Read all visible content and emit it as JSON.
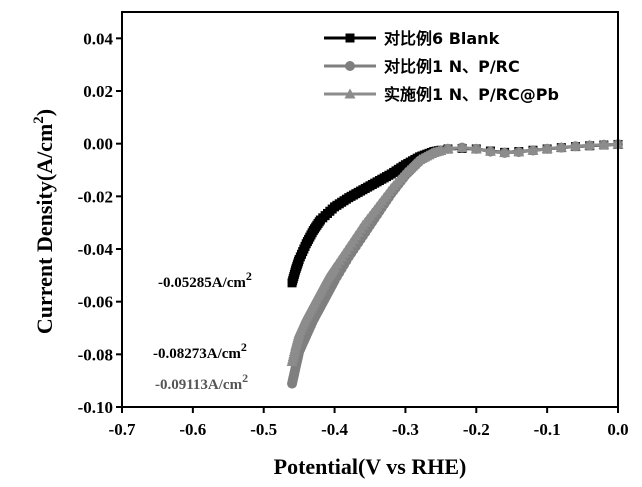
{
  "chart_data": {
    "type": "line",
    "title": "",
    "xlabel": "Potential(V vs RHE)",
    "ylabel": "Current Density(A/cm",
    "ylabel_sup": "2",
    "ylabel_end": ")",
    "xlim": [
      -0.7,
      0.0
    ],
    "ylim": [
      -0.1,
      0.05
    ],
    "xticks": [
      -0.7,
      -0.6,
      -0.5,
      -0.4,
      -0.3,
      -0.2,
      -0.1,
      0.0
    ],
    "xtick_labels": [
      "-0.7",
      "-0.6",
      "-0.5",
      "-0.4",
      "-0.3",
      "-0.2",
      "-0.1",
      "0.0"
    ],
    "yticks": [
      0.04,
      0.02,
      0.0,
      -0.02,
      -0.04,
      -0.06,
      -0.08,
      -0.1
    ],
    "ytick_labels": [
      "0.04",
      "0.02",
      "0.00",
      "-0.02",
      "-0.04",
      "-0.06",
      "-0.08",
      "-0.10"
    ],
    "legend_position": "top-right",
    "series": [
      {
        "name": "对比例6 Blank",
        "marker": "square",
        "color": "#000000",
        "x": [
          -0.46,
          -0.455,
          -0.45,
          -0.44,
          -0.43,
          -0.42,
          -0.4,
          -0.38,
          -0.36,
          -0.34,
          -0.32,
          -0.3,
          -0.28,
          -0.26,
          -0.24,
          -0.22,
          -0.2,
          -0.18,
          -0.16,
          -0.14,
          -0.12,
          -0.1,
          -0.08,
          -0.06,
          -0.04,
          -0.02,
          0.0
        ],
        "y": [
          -0.05285,
          -0.048,
          -0.044,
          -0.038,
          -0.033,
          -0.029,
          -0.024,
          -0.0205,
          -0.0175,
          -0.0145,
          -0.0115,
          -0.008,
          -0.005,
          -0.003,
          -0.002,
          -0.0018,
          -0.002,
          -0.0028,
          -0.0033,
          -0.003,
          -0.0025,
          -0.002,
          -0.0015,
          -0.0011,
          -0.0008,
          -0.0005,
          -0.0003
        ]
      },
      {
        "name": "对比例1 N、P/RC",
        "marker": "circle",
        "color": "#7f7f7f",
        "x": [
          -0.46,
          -0.455,
          -0.45,
          -0.44,
          -0.43,
          -0.42,
          -0.41,
          -0.4,
          -0.38,
          -0.36,
          -0.34,
          -0.32,
          -0.3,
          -0.28,
          -0.26,
          -0.24,
          -0.22,
          -0.2,
          -0.18,
          -0.16,
          -0.14,
          -0.12,
          -0.1,
          -0.08,
          -0.06,
          -0.04,
          -0.02,
          0.0
        ],
        "y": [
          -0.09113,
          -0.085,
          -0.079,
          -0.073,
          -0.067,
          -0.062,
          -0.057,
          -0.052,
          -0.043,
          -0.035,
          -0.027,
          -0.019,
          -0.012,
          -0.0065,
          -0.0035,
          -0.002,
          -0.0015,
          -0.002,
          -0.003,
          -0.0035,
          -0.0032,
          -0.0026,
          -0.002,
          -0.0015,
          -0.001,
          -0.0007,
          -0.0004,
          -0.0002
        ]
      },
      {
        "name": "实施例1 N、P/RC@Pb",
        "marker": "triangle",
        "color": "#8c8c8c",
        "x": [
          -0.46,
          -0.455,
          -0.45,
          -0.44,
          -0.43,
          -0.42,
          -0.41,
          -0.4,
          -0.38,
          -0.36,
          -0.34,
          -0.32,
          -0.3,
          -0.28,
          -0.26,
          -0.24,
          -0.22,
          -0.2,
          -0.18,
          -0.16,
          -0.14,
          -0.12,
          -0.1,
          -0.08,
          -0.06,
          -0.04,
          -0.02,
          0.0
        ],
        "y": [
          -0.08273,
          -0.077,
          -0.072,
          -0.066,
          -0.061,
          -0.056,
          -0.051,
          -0.047,
          -0.039,
          -0.031,
          -0.024,
          -0.017,
          -0.011,
          -0.006,
          -0.0033,
          -0.0019,
          -0.0015,
          -0.002,
          -0.0029,
          -0.0034,
          -0.0031,
          -0.0025,
          -0.0019,
          -0.0014,
          -0.001,
          -0.0006,
          -0.0004,
          -0.0002
        ]
      }
    ],
    "annotations": [
      {
        "text": "-0.05285A/cm",
        "sup": "2",
        "x": -0.46,
        "y": -0.05285,
        "color": "#000000"
      },
      {
        "text": "-0.08273A/cm",
        "sup": "2",
        "x": -0.46,
        "y": -0.08273,
        "color": "#000000"
      },
      {
        "text": "-0.09113A/cm",
        "sup": "2",
        "x": -0.46,
        "y": -0.09113,
        "color": "#555555"
      }
    ]
  }
}
